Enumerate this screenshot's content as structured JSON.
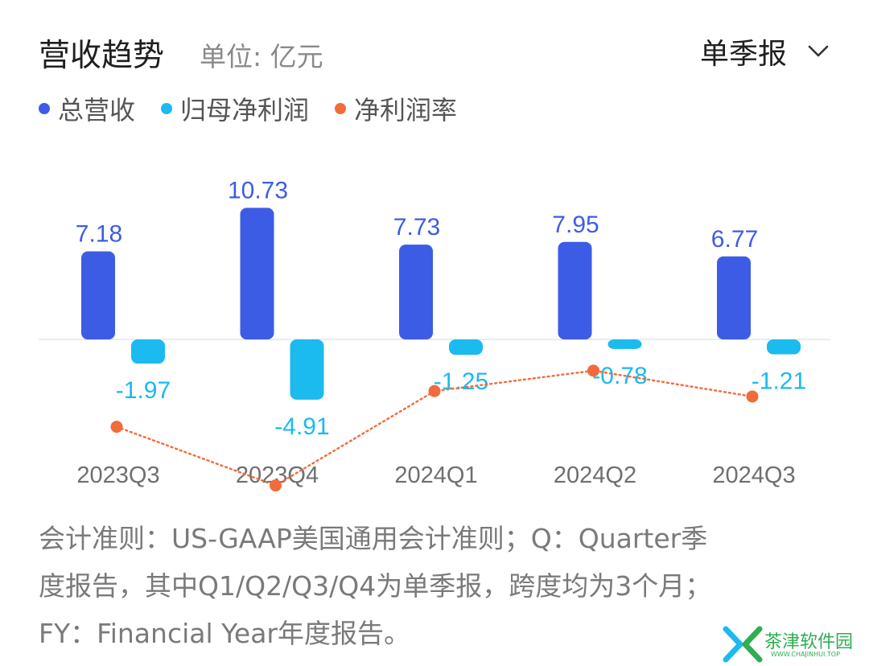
{
  "header": {
    "title": "营收趋势",
    "unit": "单位: 亿元",
    "period_select": "单季报"
  },
  "icons": {
    "dropdown": "chevron-down-icon"
  },
  "colors": {
    "revenue": "#3d5ce6",
    "net_profit": "#1bbaef",
    "net_margin": "#f26b3a",
    "title": "#1f1f1f",
    "muted": "#8a8a8a",
    "watermark": "#2fae52"
  },
  "chart_data": {
    "type": "bar",
    "categories": [
      "2023Q3",
      "2023Q4",
      "2024Q1",
      "2024Q2",
      "2024Q3"
    ],
    "series": [
      {
        "name": "总营收",
        "type": "bar",
        "values": [
          7.18,
          10.73,
          7.73,
          7.95,
          6.77
        ]
      },
      {
        "name": "归母净利润",
        "type": "bar",
        "values": [
          -1.97,
          -4.91,
          -1.25,
          -0.78,
          -1.21
        ]
      },
      {
        "name": "净利润率",
        "type": "line",
        "values": [
          -27.4,
          -45.8,
          -16.2,
          -9.8,
          -17.9
        ]
      }
    ],
    "bar_ylim": [
      -6,
      12
    ],
    "line_ylim": [
      -55,
      0
    ],
    "grid": false,
    "legend": "top-left",
    "data_labels": true
  },
  "footnote": {
    "lines": [
      "会计准则：US-GAAP美国通用会计准则；Q：Quarter季",
      "度报告，其中Q1/Q2/Q3/Q4为单季报，跨度均为3个月；",
      "FY：Financial Year年度报告。"
    ]
  },
  "watermark": {
    "name": "茶津软件园",
    "url": "WWW.CHAJINHUI.TOP"
  }
}
